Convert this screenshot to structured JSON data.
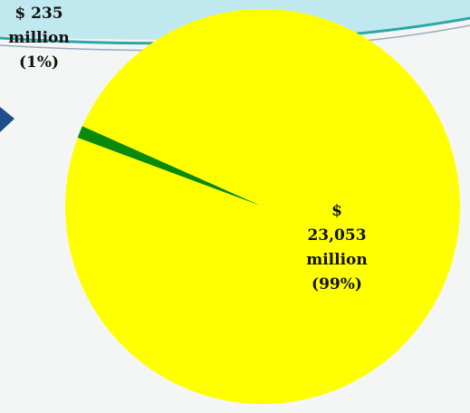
{
  "chart_data": {
    "type": "pie",
    "categories": [
      null,
      null
    ],
    "series": [
      {
        "name": null,
        "colors": [
          "#0a8a0a",
          "#ffff00"
        ],
        "values": [
          235,
          23053
        ],
        "value_labels": [
          "$ 235 million (1%)",
          "$ 23,053 million (99%)"
        ]
      }
    ]
  }
}
